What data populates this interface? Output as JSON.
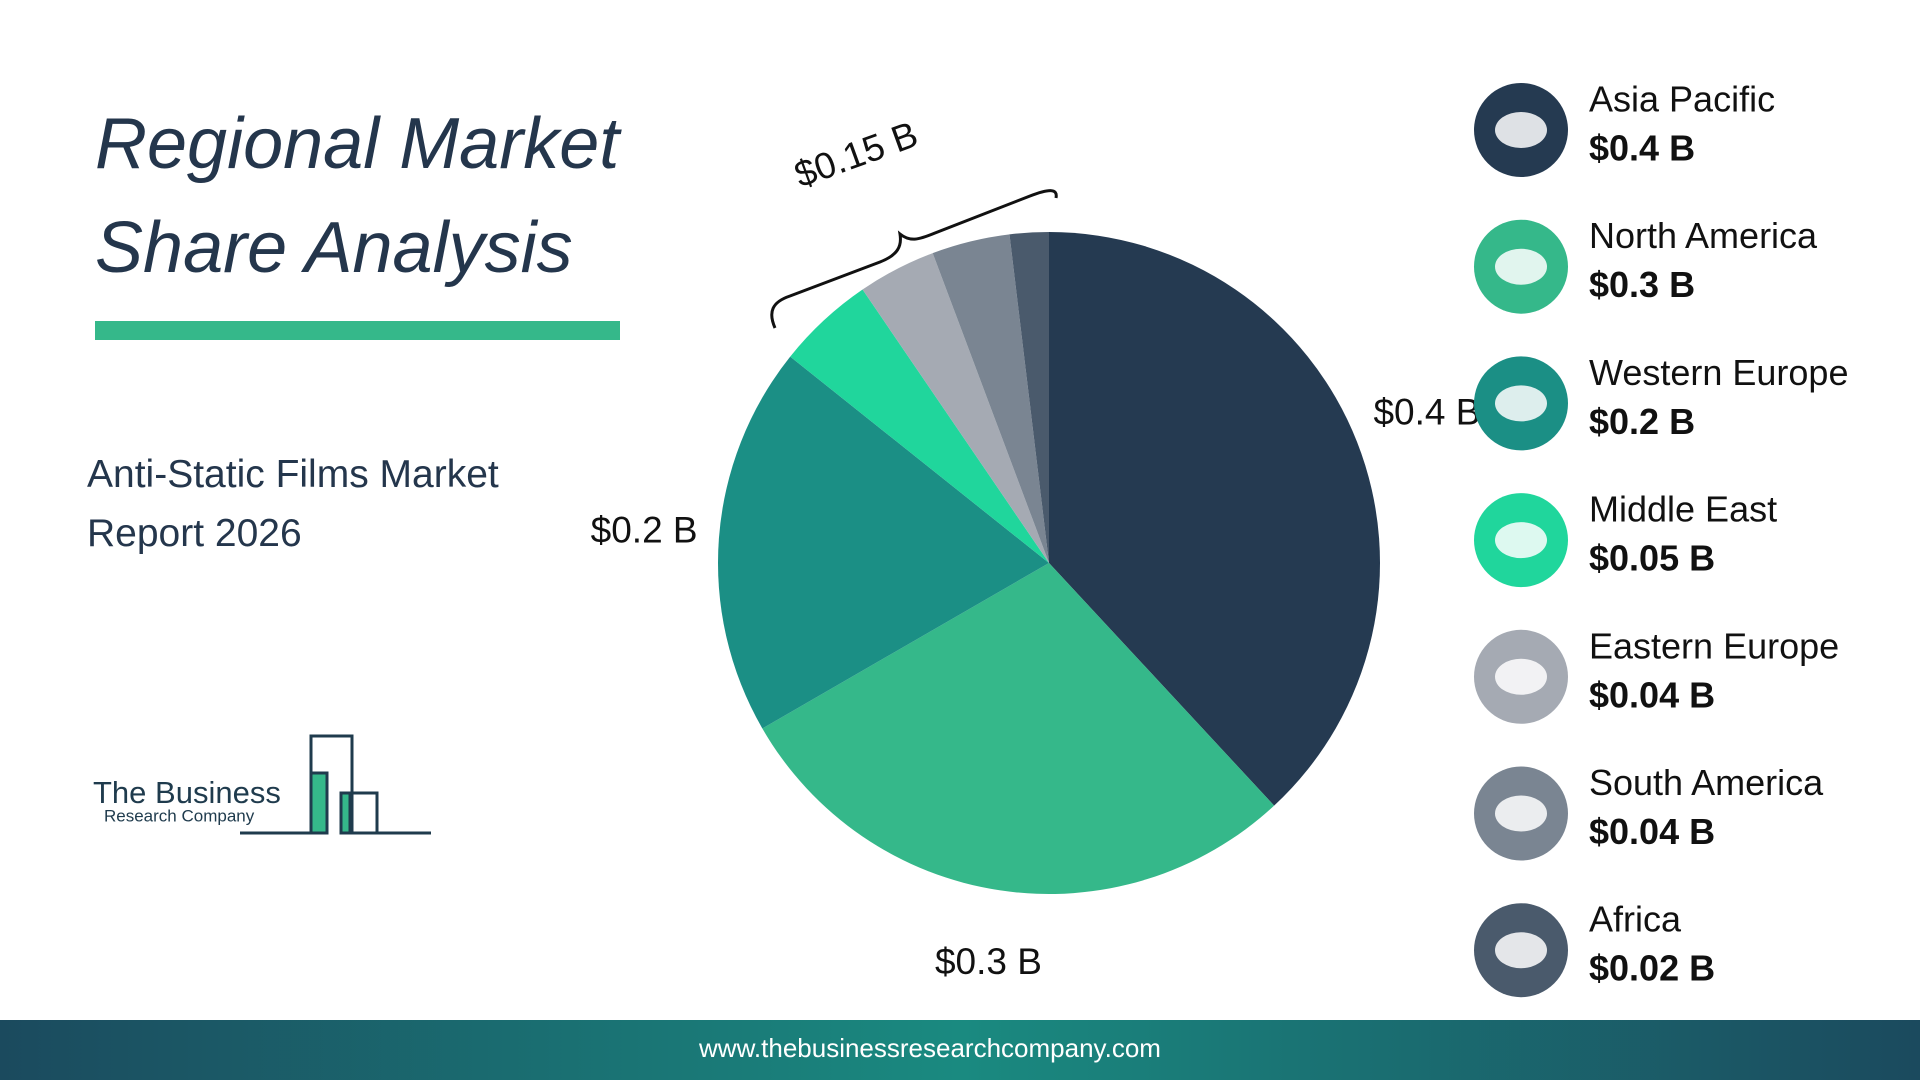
{
  "chart_data": {
    "type": "pie",
    "title": "Regional Market Share Analysis",
    "subtitle": "Anti-Static Films Market Report 2026",
    "categories": [
      "Asia Pacific",
      "North America",
      "Western Europe",
      "Middle East",
      "Eastern Europe",
      "South America",
      "Africa"
    ],
    "values": [
      0.4,
      0.3,
      0.2,
      0.05,
      0.04,
      0.04,
      0.02
    ],
    "value_labels": [
      "$0.4 B",
      "$0.3 B",
      "$0.2 B",
      "$0.05 B",
      "$0.04 B",
      "$0.04 B",
      "$0.02 B"
    ],
    "colors": [
      "#253a51",
      "#35b88a",
      "#1b8f85",
      "#20d69c",
      "#a5aab3",
      "#7a8592",
      "#4a5a6c"
    ],
    "slice_labels_shown": [
      0,
      1,
      2
    ],
    "annotation": "$0.15 B",
    "legend": "right"
  },
  "logo": {
    "name": "The Business",
    "tagline": "Research Company"
  },
  "footer": {
    "url": "www.thebusinessresearchcompany.com"
  }
}
